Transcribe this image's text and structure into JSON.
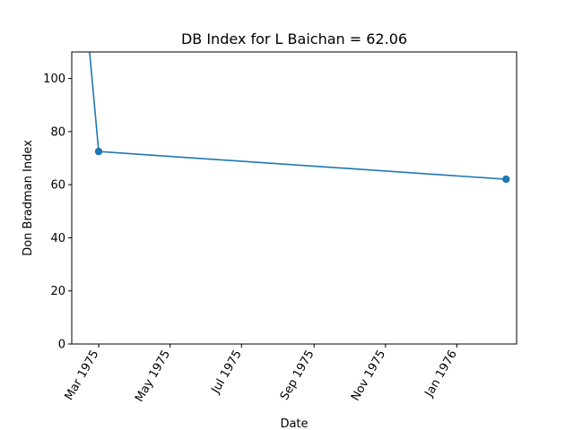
{
  "chart_data": {
    "type": "line",
    "title": "DB Index for L Baichan = 62.06",
    "xlabel": "Date",
    "ylabel": "Don Bradman Index",
    "ylim": [
      0,
      110
    ],
    "xlim": [
      "1975-02-06",
      "1976-02-21"
    ],
    "grid": false,
    "y_ticks": [
      0,
      20,
      40,
      60,
      80,
      100
    ],
    "x_ticks": [
      {
        "date": "1975-03-01",
        "label": "Mar 1975"
      },
      {
        "date": "1975-05-01",
        "label": "May 1975"
      },
      {
        "date": "1975-07-01",
        "label": "Jul 1975"
      },
      {
        "date": "1975-09-01",
        "label": "Sep 1975"
      },
      {
        "date": "1975-11-01",
        "label": "Nov 1975"
      },
      {
        "date": "1976-01-01",
        "label": "Jan 1976"
      }
    ],
    "series": [
      {
        "color": "#1f77b4",
        "points": [
          {
            "x": "1975-02-13",
            "y": 150,
            "marker": false
          },
          {
            "x": "1975-03-01",
            "y": 72.5,
            "marker": true
          },
          {
            "x": "1976-02-12",
            "y": 62.06,
            "marker": true
          }
        ]
      }
    ]
  }
}
